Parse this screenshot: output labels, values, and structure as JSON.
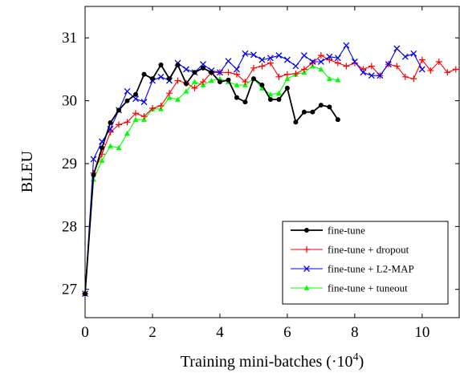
{
  "chart_data": {
    "type": "line",
    "title": "",
    "xlabel": "Training mini-batches (·10",
    "xlabel_exp": "4",
    "xlabel_close": ")",
    "ylabel": "BLEU",
    "xlim": [
      0,
      11.1
    ],
    "ylim": [
      26.55,
      31.5
    ],
    "xticks": [
      0,
      2,
      4,
      6,
      8,
      10
    ],
    "yticks": [
      27,
      28,
      29,
      30,
      31
    ],
    "grid": false,
    "legend_position": "bottom-right",
    "series": [
      {
        "name": "fine-tune",
        "color": "#000000",
        "marker": "dot",
        "x": [
          0,
          0.25,
          0.5,
          0.75,
          1.0,
          1.25,
          1.5,
          1.75,
          2.0,
          2.25,
          2.5,
          2.75,
          3.0,
          3.25,
          3.5,
          3.75,
          4.0,
          4.25,
          4.5,
          4.75,
          5.0,
          5.25,
          5.5,
          5.75,
          6.0,
          6.25,
          6.5,
          6.75,
          7.0,
          7.25,
          7.5
        ],
        "y": [
          26.93,
          28.82,
          29.25,
          29.65,
          29.85,
          30.0,
          30.1,
          30.42,
          30.35,
          30.57,
          30.35,
          30.57,
          30.27,
          30.45,
          30.52,
          30.45,
          30.3,
          30.33,
          30.05,
          29.98,
          30.35,
          30.25,
          30.02,
          30.02,
          30.2,
          29.66,
          29.82,
          29.82,
          29.93,
          29.9,
          29.7
        ]
      },
      {
        "name": "fine-tune + dropout",
        "color": "#ff0000",
        "marker": "plus",
        "x": [
          0,
          0.25,
          0.5,
          0.75,
          1.0,
          1.25,
          1.5,
          1.75,
          2.0,
          2.25,
          2.5,
          2.75,
          3.0,
          3.25,
          3.5,
          3.75,
          4.0,
          4.25,
          4.5,
          4.75,
          5.0,
          5.25,
          5.5,
          5.75,
          6.0,
          6.25,
          6.5,
          6.75,
          7.0,
          7.25,
          7.5,
          7.75,
          8.0,
          8.25,
          8.5,
          8.75,
          9.0,
          9.25,
          9.5,
          9.75,
          10.0,
          10.25,
          10.5,
          10.75,
          11.0
        ],
        "y": [
          26.93,
          28.85,
          29.15,
          29.5,
          29.62,
          29.66,
          29.8,
          29.75,
          29.88,
          29.92,
          30.12,
          30.32,
          30.28,
          30.2,
          30.3,
          30.45,
          30.45,
          30.45,
          30.42,
          30.3,
          30.52,
          30.55,
          30.6,
          30.38,
          30.42,
          30.43,
          30.5,
          30.6,
          30.72,
          30.65,
          30.6,
          30.55,
          30.6,
          30.5,
          30.55,
          30.4,
          30.58,
          30.55,
          30.38,
          30.35,
          30.65,
          30.48,
          30.62,
          30.45,
          30.5
        ]
      },
      {
        "name": "fine-tune + L2-MAP",
        "color": "#0000ff",
        "marker": "cross",
        "x": [
          0,
          0.25,
          0.5,
          0.75,
          1.0,
          1.25,
          1.5,
          1.75,
          2.0,
          2.25,
          2.5,
          2.75,
          3.0,
          3.25,
          3.5,
          3.75,
          4.0,
          4.25,
          4.5,
          4.75,
          5.0,
          5.25,
          5.5,
          5.75,
          6.0,
          6.25,
          6.5,
          6.75,
          7.0,
          7.25,
          7.5,
          7.75,
          8.0,
          8.25,
          8.5,
          8.75,
          9.0,
          9.25,
          9.5,
          9.75,
          10.0
        ],
        "y": [
          26.93,
          29.07,
          29.35,
          29.55,
          29.85,
          30.15,
          30.03,
          29.98,
          30.32,
          30.38,
          30.32,
          30.6,
          30.5,
          30.45,
          30.58,
          30.48,
          30.45,
          30.63,
          30.5,
          30.75,
          30.73,
          30.65,
          30.68,
          30.72,
          30.65,
          30.55,
          30.72,
          30.62,
          30.62,
          30.7,
          30.68,
          30.88,
          30.62,
          30.45,
          30.4,
          30.4,
          30.58,
          30.83,
          30.7,
          30.75,
          30.5
        ]
      },
      {
        "name": "fine-tune + tuneout",
        "color": "#00ff00",
        "marker": "triangle",
        "x": [
          0,
          0.25,
          0.5,
          0.75,
          1.0,
          1.25,
          1.5,
          1.75,
          2.0,
          2.25,
          2.5,
          2.75,
          3.0,
          3.25,
          3.5,
          3.75,
          4.0,
          4.25,
          4.5,
          4.75,
          5.0,
          5.25,
          5.5,
          5.75,
          6.0,
          6.25,
          6.5,
          6.75,
          7.0,
          7.25,
          7.5
        ],
        "y": [
          26.93,
          28.75,
          29.05,
          29.28,
          29.25,
          29.48,
          29.7,
          29.7,
          29.87,
          29.87,
          30.05,
          30.02,
          30.15,
          30.3,
          30.25,
          30.32,
          30.35,
          30.3,
          30.25,
          30.25,
          30.35,
          30.2,
          30.1,
          30.12,
          30.35,
          30.42,
          30.45,
          30.55,
          30.5,
          30.35,
          30.33
        ]
      }
    ]
  }
}
